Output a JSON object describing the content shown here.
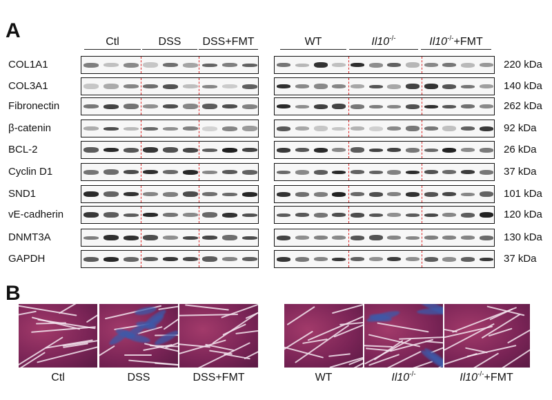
{
  "panels": {
    "a": "A",
    "b": "B"
  },
  "groups_left": [
    "Ctl",
    "DSS",
    "DSS+FMT"
  ],
  "groups_right": [
    {
      "base": "WT",
      "sup": "",
      "tail": "",
      "italic": false
    },
    {
      "base": "Il10",
      "sup": "-/-",
      "tail": "",
      "italic": true
    },
    {
      "base": "Il10",
      "sup": "-/-",
      "tail": "+FMT",
      "italic": true
    }
  ],
  "blots": [
    {
      "protein": "COL1A1",
      "kda": "220 kDa"
    },
    {
      "protein": "COL3A1",
      "kda": "140 kDa"
    },
    {
      "protein": "Fibronectin",
      "kda": "262 kDa"
    },
    {
      "protein": "β-catenin",
      "kda": "92 kDa"
    },
    {
      "protein": "BCL-2",
      "kda": "26 kDa"
    },
    {
      "protein": "Cyclin D1",
      "kda": "37 kDa"
    },
    {
      "protein": "SND1",
      "kda": "101 kDa"
    },
    {
      "protein": "vE-cadherin",
      "kda": "120 kDa"
    },
    {
      "protein": "DNMT3A",
      "kda": "130 kDa"
    },
    {
      "protein": "GAPDH",
      "kda": "37 kDa"
    }
  ],
  "histo_labels_left": [
    "Ctl",
    "DSS",
    "DSS+FMT"
  ],
  "histo_labels_right": [
    {
      "base": "WT",
      "sup": "",
      "tail": "",
      "italic": false
    },
    {
      "base": "Il10",
      "sup": "-/-",
      "tail": "",
      "italic": true
    },
    {
      "base": "Il10",
      "sup": "-/-",
      "tail": "+FMT",
      "italic": true
    }
  ],
  "colors": {
    "separator": "#dd2222",
    "tissue": "#7a2456",
    "collagen_stain": "#3c5aaa"
  }
}
